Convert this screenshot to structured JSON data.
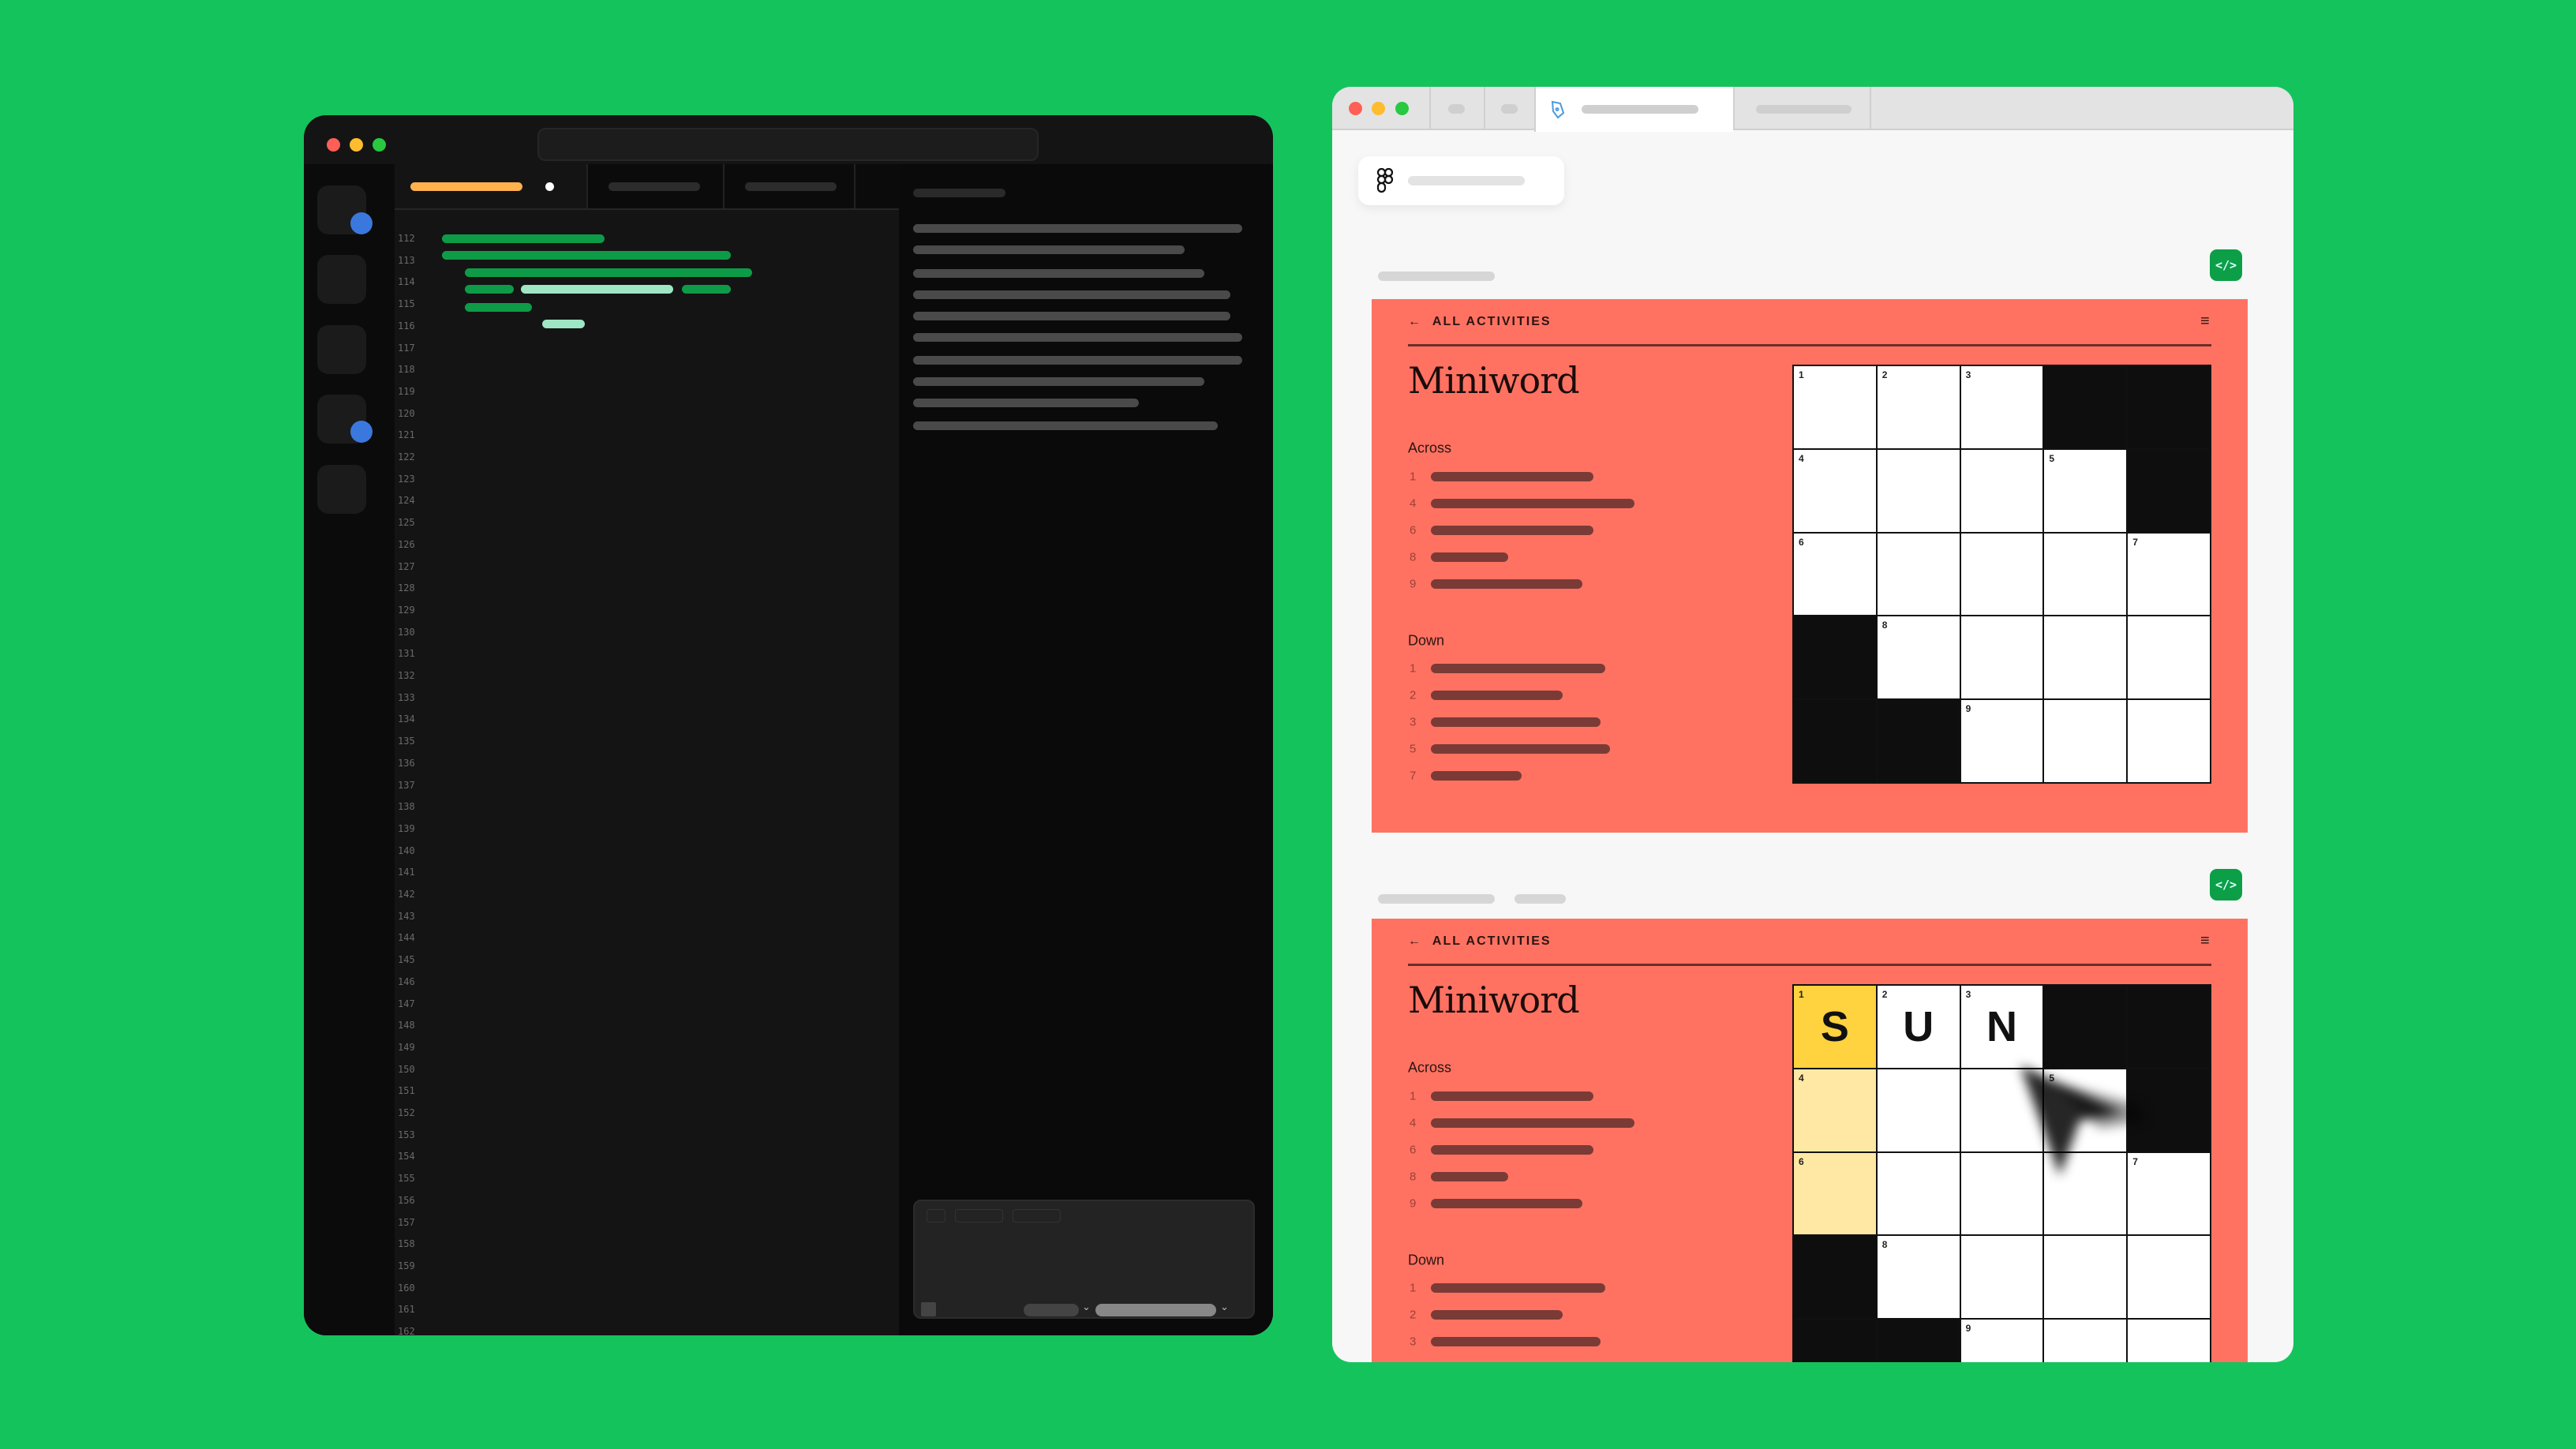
{
  "editor": {
    "traffic_lights": [
      "#ff5f57",
      "#febc2e",
      "#28c840"
    ],
    "line_numbers": [
      "112",
      "113",
      "114",
      "115",
      "116",
      "117",
      "118",
      "119",
      "120",
      "121",
      "122",
      "123",
      "124",
      "125",
      "126",
      "127",
      "128",
      "129",
      "130",
      "131",
      "132",
      "133",
      "134",
      "135",
      "136",
      "137",
      "138",
      "139",
      "140",
      "141",
      "142",
      "143",
      "144",
      "145",
      "146",
      "147",
      "148",
      "149",
      "150",
      "151",
      "152",
      "153",
      "154",
      "155",
      "156",
      "157",
      "158",
      "159",
      "160",
      "161",
      "162"
    ],
    "code_color": "#0e9b47",
    "highlight_color": "#9fe6c4",
    "active_tab_color": "#ffb14e"
  },
  "browser": {
    "traffic_lights": [
      "#ff5f57",
      "#febc2e",
      "#28c840"
    ],
    "active_tab_icon": "pen-tool-icon",
    "header_icon": "figma-logo-icon",
    "code_button_icon": "code-icon",
    "code_button_label": "</>"
  },
  "puzzles": [
    {
      "back_label": "ALL ACTIVITIES",
      "back_icon": "←",
      "menu_icon": "≡",
      "title": "Miniword",
      "across_label": "Across",
      "down_label": "Down",
      "across_numbers": [
        "1",
        "4",
        "6",
        "8",
        "9"
      ],
      "down_numbers": [
        "1",
        "2",
        "3",
        "5",
        "7"
      ],
      "grid": [
        [
          {
            "n": "1"
          },
          {
            "n": "2"
          },
          {
            "n": "3"
          },
          null,
          null
        ],
        [
          {
            "n": "4"
          },
          {},
          {},
          {
            "n": "5"
          },
          null
        ],
        [
          {
            "n": "6"
          },
          {},
          {},
          {},
          {
            "n": "7"
          }
        ],
        [
          null,
          {
            "n": "8"
          },
          {},
          {},
          {}
        ],
        [
          null,
          null,
          {
            "n": "9"
          },
          {},
          {}
        ]
      ]
    },
    {
      "back_label": "ALL ACTIVITIES",
      "back_icon": "←",
      "menu_icon": "≡",
      "title": "Miniword",
      "across_label": "Across",
      "down_label": "Down",
      "across_numbers": [
        "1",
        "4",
        "6",
        "8",
        "9"
      ],
      "down_numbers": [
        "1",
        "2",
        "3"
      ],
      "grid": [
        [
          {
            "n": "1",
            "l": "S",
            "s": "sel"
          },
          {
            "n": "2",
            "l": "U"
          },
          {
            "n": "3",
            "l": "N"
          },
          null,
          null
        ],
        [
          {
            "n": "4",
            "s": "rel"
          },
          {},
          {},
          {
            "n": "5"
          },
          null
        ],
        [
          {
            "n": "6",
            "s": "rel"
          },
          {},
          {},
          {},
          {
            "n": "7"
          }
        ],
        [
          null,
          {
            "n": "8"
          },
          {},
          {},
          {}
        ],
        [
          null,
          null,
          {
            "n": "9"
          },
          {},
          {}
        ]
      ]
    }
  ],
  "colors": {
    "background": "#15c35d",
    "card": "#ff7262",
    "selected": "#ffd23f",
    "related": "#ffe8a3",
    "code_button": "#0c9f48"
  }
}
